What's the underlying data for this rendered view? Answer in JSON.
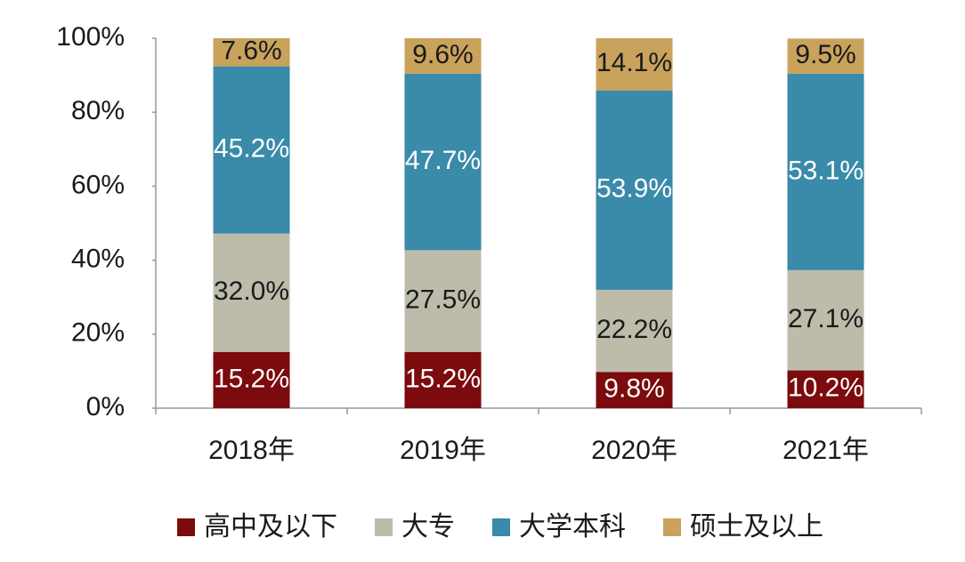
{
  "chart_data": {
    "type": "stacked-bar",
    "categories": [
      "2018年",
      "2019年",
      "2020年",
      "2021年"
    ],
    "series": [
      {
        "name": "高中及以下",
        "color": "#7b0b0d",
        "values": [
          15.2,
          15.2,
          9.8,
          10.2
        ],
        "value_labels": [
          "15.2%",
          "15.2%",
          "9.8%",
          "10.2%"
        ]
      },
      {
        "name": "大专",
        "color": "#bdbcab",
        "values": [
          32.0,
          27.5,
          22.2,
          27.1
        ],
        "value_labels": [
          "32.0%",
          "27.5%",
          "22.2%",
          "27.1%"
        ]
      },
      {
        "name": "大学本科",
        "color": "#3a8aa9",
        "values": [
          45.2,
          47.7,
          53.9,
          53.1
        ],
        "value_labels": [
          "45.2%",
          "47.7%",
          "53.9%",
          "53.1%"
        ]
      },
      {
        "name": "硕士及以上",
        "color": "#c9a25c",
        "values": [
          7.6,
          9.6,
          14.1,
          9.5
        ],
        "value_labels": [
          "7.6%",
          "9.6%",
          "14.1%",
          "9.5%"
        ]
      }
    ],
    "ylim": [
      0,
      100
    ],
    "yticks": [
      {
        "value": 0,
        "label": "0%"
      },
      {
        "value": 20,
        "label": "20%"
      },
      {
        "value": 40,
        "label": "40%"
      },
      {
        "value": 60,
        "label": "60%"
      },
      {
        "value": 80,
        "label": "80%"
      },
      {
        "value": 100,
        "label": "100%"
      }
    ],
    "legend": "bottom"
  }
}
